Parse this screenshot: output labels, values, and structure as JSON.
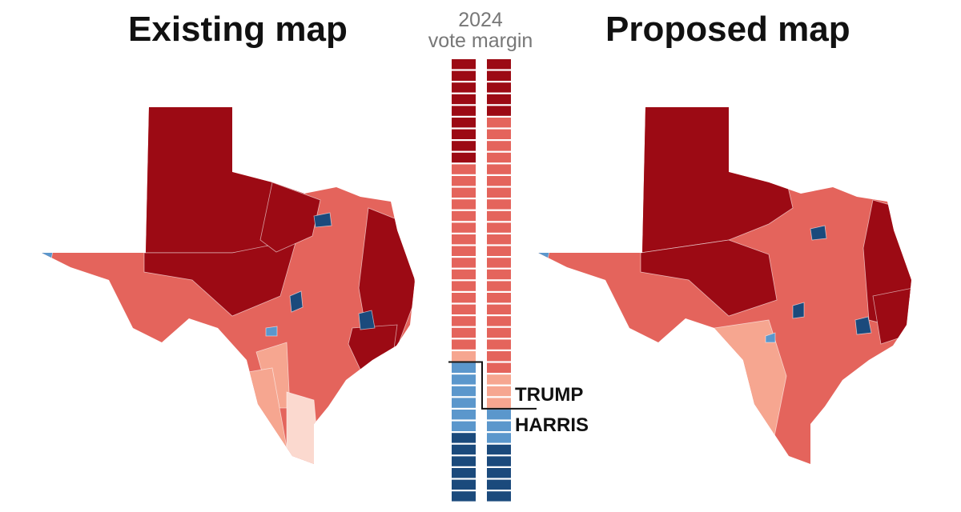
{
  "titles": {
    "existing": "Existing map",
    "proposed": "Proposed map"
  },
  "legend": {
    "heading_line1": "2024",
    "heading_line2": "vote margin",
    "trump_label": "TRUMP",
    "harris_label": "HARRIS"
  },
  "colors": {
    "rep_strong": "#9c0a14",
    "rep_lean": "#e4645c",
    "rep_slight": "#f6a690",
    "rep_tossup": "#fbd9cf",
    "dem_lean": "#5b97cc",
    "dem_strong": "#1b4a7c",
    "divider": "#111111"
  },
  "seat_columns": [
    {
      "name": "existing",
      "seats": [
        "rep_strong",
        "rep_strong",
        "rep_strong",
        "rep_strong",
        "rep_strong",
        "rep_strong",
        "rep_strong",
        "rep_strong",
        "rep_strong",
        "rep_lean",
        "rep_lean",
        "rep_lean",
        "rep_lean",
        "rep_lean",
        "rep_lean",
        "rep_lean",
        "rep_lean",
        "rep_lean",
        "rep_lean",
        "rep_lean",
        "rep_lean",
        "rep_lean",
        "rep_lean",
        "rep_lean",
        "rep_lean",
        "rep_slight",
        "dem_lean",
        "dem_lean",
        "dem_lean",
        "dem_lean",
        "dem_lean",
        "dem_lean",
        "dem_strong",
        "dem_strong",
        "dem_strong",
        "dem_strong",
        "dem_strong",
        "dem_strong"
      ]
    },
    {
      "name": "proposed",
      "seats": [
        "rep_strong",
        "rep_strong",
        "rep_strong",
        "rep_strong",
        "rep_strong",
        "rep_lean",
        "rep_lean",
        "rep_lean",
        "rep_lean",
        "rep_lean",
        "rep_lean",
        "rep_lean",
        "rep_lean",
        "rep_lean",
        "rep_lean",
        "rep_lean",
        "rep_lean",
        "rep_lean",
        "rep_lean",
        "rep_lean",
        "rep_lean",
        "rep_lean",
        "rep_lean",
        "rep_lean",
        "rep_lean",
        "rep_lean",
        "rep_lean",
        "rep_slight",
        "rep_slight",
        "rep_slight",
        "dem_lean",
        "dem_lean",
        "dem_lean",
        "dem_strong",
        "dem_strong",
        "dem_strong",
        "dem_strong",
        "dem_strong"
      ]
    }
  ]
}
